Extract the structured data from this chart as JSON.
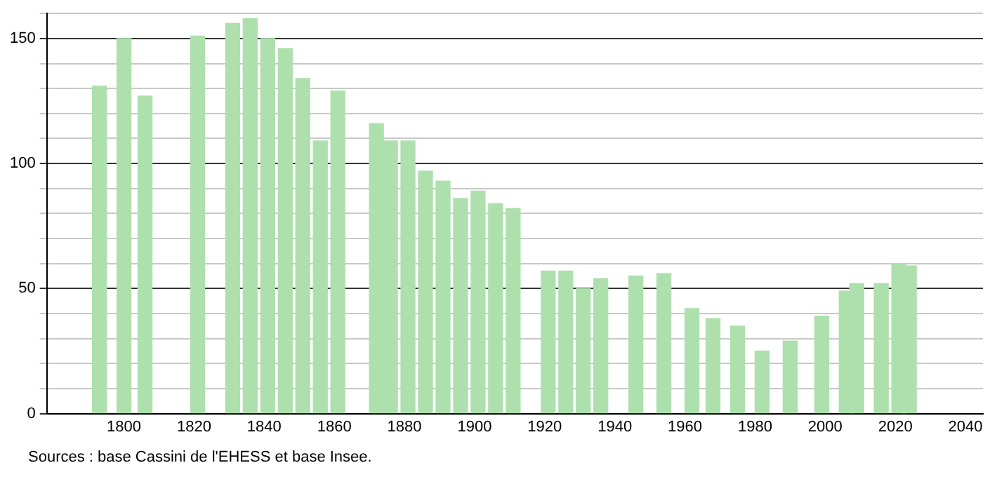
{
  "chart_data": {
    "type": "bar",
    "x": [
      1793,
      1800,
      1806,
      1821,
      1831,
      1836,
      1841,
      1846,
      1851,
      1856,
      1861,
      1872,
      1876,
      1881,
      1886,
      1891,
      1896,
      1901,
      1906,
      1911,
      1921,
      1926,
      1931,
      1936,
      1946,
      1954,
      1962,
      1968,
      1975,
      1982,
      1990,
      1999,
      2006,
      2009,
      2016,
      2021,
      2024
    ],
    "values": [
      131,
      150,
      127,
      151,
      156,
      158,
      150,
      146,
      134,
      109,
      129,
      116,
      109,
      109,
      97,
      93,
      86,
      89,
      84,
      82,
      57,
      57,
      50,
      54,
      55,
      56,
      42,
      38,
      35,
      25,
      29,
      39,
      49,
      52,
      52,
      60,
      59
    ],
    "color": "#ade0ad",
    "xlim": [
      1778,
      2045
    ],
    "xticks": [
      1800,
      1820,
      1840,
      1860,
      1880,
      1900,
      1920,
      1940,
      1960,
      1980,
      2000,
      2020,
      2040
    ],
    "ylim": [
      0,
      160
    ],
    "yticks": [
      0,
      {
        "value": 10,
        "label": null
      },
      {
        "value": 20,
        "label": null
      },
      {
        "value": 30,
        "label": null
      },
      {
        "value": 40,
        "label": null
      },
      50,
      {
        "value": 60,
        "label": null
      },
      {
        "value": 70,
        "label": null
      },
      {
        "value": 80,
        "label": null
      },
      {
        "value": 90,
        "label": null
      },
      100,
      {
        "value": 110,
        "label": null
      },
      {
        "value": 120,
        "label": null
      },
      {
        "value": 130,
        "label": null
      },
      {
        "value": 140,
        "label": null
      },
      150,
      {
        "value": 160,
        "label": null
      }
    ],
    "grid": "y",
    "annotations": [
      "Sources : base Cassini de l'EHESS et base Insee."
    ]
  }
}
